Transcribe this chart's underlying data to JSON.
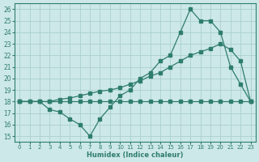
{
  "line1_x": [
    0,
    1,
    2,
    3,
    4,
    5,
    6,
    7,
    8,
    9,
    10,
    11,
    12,
    13,
    14,
    15,
    16,
    17,
    18,
    19,
    20,
    21,
    22,
    23
  ],
  "line1_y": [
    18,
    18,
    18,
    18,
    18,
    18,
    18,
    18,
    18,
    18,
    18,
    18,
    18,
    18,
    18,
    18,
    18,
    18,
    18,
    18,
    18,
    18,
    18,
    18
  ],
  "line2_x": [
    0,
    2,
    3,
    4,
    5,
    6,
    7,
    8,
    9,
    10,
    11,
    12,
    13,
    14,
    15,
    16,
    17,
    18,
    19,
    20,
    21,
    22,
    23
  ],
  "line2_y": [
    18,
    18,
    18,
    18.2,
    18.3,
    18.5,
    18.7,
    18.9,
    19.0,
    19.2,
    19.5,
    19.8,
    20.2,
    20.5,
    21.0,
    21.5,
    22.0,
    22.3,
    22.6,
    23.0,
    22.5,
    21.5,
    18.0
  ],
  "line3_x": [
    0,
    1,
    2,
    3,
    4,
    5,
    6,
    7,
    8,
    9,
    10,
    11,
    12,
    13,
    14,
    15,
    16,
    17,
    18,
    19,
    20,
    21,
    22,
    23
  ],
  "line3_y": [
    18,
    18,
    18,
    17.3,
    17.1,
    16.5,
    16.0,
    15.0,
    16.5,
    17.5,
    18.5,
    19.0,
    20.0,
    20.5,
    21.5,
    22.0,
    24.0,
    26.0,
    25.0,
    25.0,
    24.0,
    21.0,
    19.5,
    18.0
  ],
  "line_color": "#2e7d6e",
  "bg_color": "#cde8e8",
  "grid_color": "#aacfcf",
  "xlabel": "Humidex (Indice chaleur)",
  "xlim": [
    -0.5,
    23.5
  ],
  "ylim": [
    14.5,
    26.5
  ],
  "yticks": [
    15,
    16,
    17,
    18,
    19,
    20,
    21,
    22,
    23,
    24,
    25,
    26
  ],
  "xticks": [
    0,
    1,
    2,
    3,
    4,
    5,
    6,
    7,
    8,
    9,
    10,
    11,
    12,
    13,
    14,
    15,
    16,
    17,
    18,
    19,
    20,
    21,
    22,
    23
  ]
}
